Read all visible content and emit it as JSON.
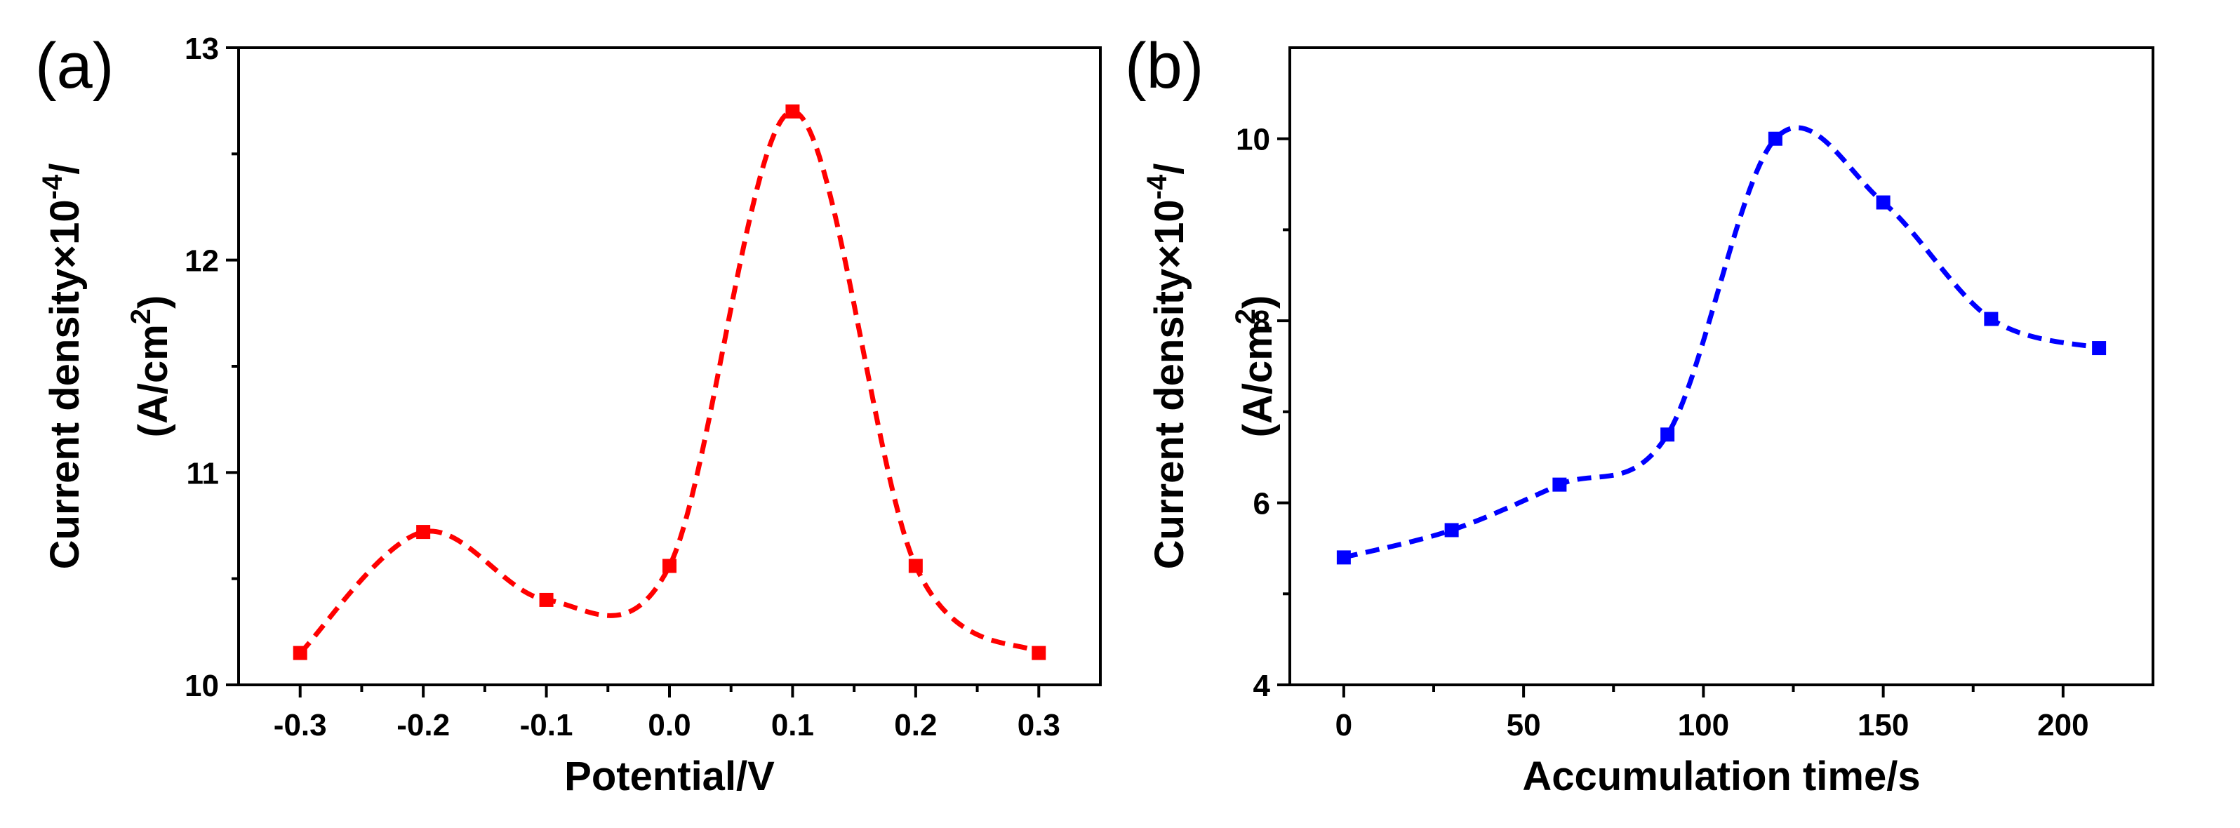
{
  "chart_data": [
    {
      "type": "line",
      "panel_label": "(a)",
      "xlabel": "Potential/V",
      "ylabel": {
        "line1_prefix": "Current density×10",
        "exponent": "-4",
        "line1_suffix": "/",
        "line2_prefix": "(A/cm",
        "line2_exp": "2",
        "line2_suffix": ")"
      },
      "xlim": [
        -0.35,
        0.35
      ],
      "ylim": [
        10,
        13
      ],
      "xticks": [
        -0.3,
        -0.2,
        -0.1,
        0.0,
        0.1,
        0.2,
        0.3
      ],
      "xtick_labels": [
        "-0.3",
        "-0.2",
        "-0.1",
        "0.0",
        "0.1",
        "0.2",
        "0.3"
      ],
      "yticks": [
        10,
        11,
        12,
        13
      ],
      "ytick_labels": [
        "10",
        "11",
        "12",
        "13"
      ],
      "series": [
        {
          "name": "Current density",
          "color": "#ff0000",
          "marker": "square",
          "line": "dashed spline",
          "x": [
            -0.3,
            -0.2,
            -0.1,
            0.0,
            0.1,
            0.2,
            0.3
          ],
          "y": [
            10.15,
            10.72,
            10.4,
            10.56,
            12.7,
            10.56,
            10.15
          ]
        }
      ]
    },
    {
      "type": "line",
      "panel_label": "(b)",
      "xlabel": "Accumulation time/s",
      "ylabel": {
        "line1_prefix": "Current density×10",
        "exponent": "-4",
        "line1_suffix": "/",
        "line2_prefix": "(A/cm",
        "line2_exp": "2",
        "line2_suffix": ")"
      },
      "xlim": [
        -15,
        225
      ],
      "ylim": [
        4,
        11
      ],
      "xticks": [
        0,
        50,
        100,
        150,
        200
      ],
      "xtick_labels": [
        "0",
        "50",
        "100",
        "150",
        "200"
      ],
      "yticks": [
        4,
        6,
        8,
        10
      ],
      "ytick_labels": [
        "4",
        "6",
        "8",
        "10"
      ],
      "series": [
        {
          "name": "Current density",
          "color": "#0000ff",
          "marker": "square",
          "line": "dashed spline",
          "x": [
            0,
            30,
            60,
            90,
            120,
            150,
            180,
            210
          ],
          "y": [
            5.4,
            5.7,
            6.2,
            6.75,
            10.0,
            9.3,
            8.02,
            7.7
          ]
        }
      ]
    }
  ]
}
